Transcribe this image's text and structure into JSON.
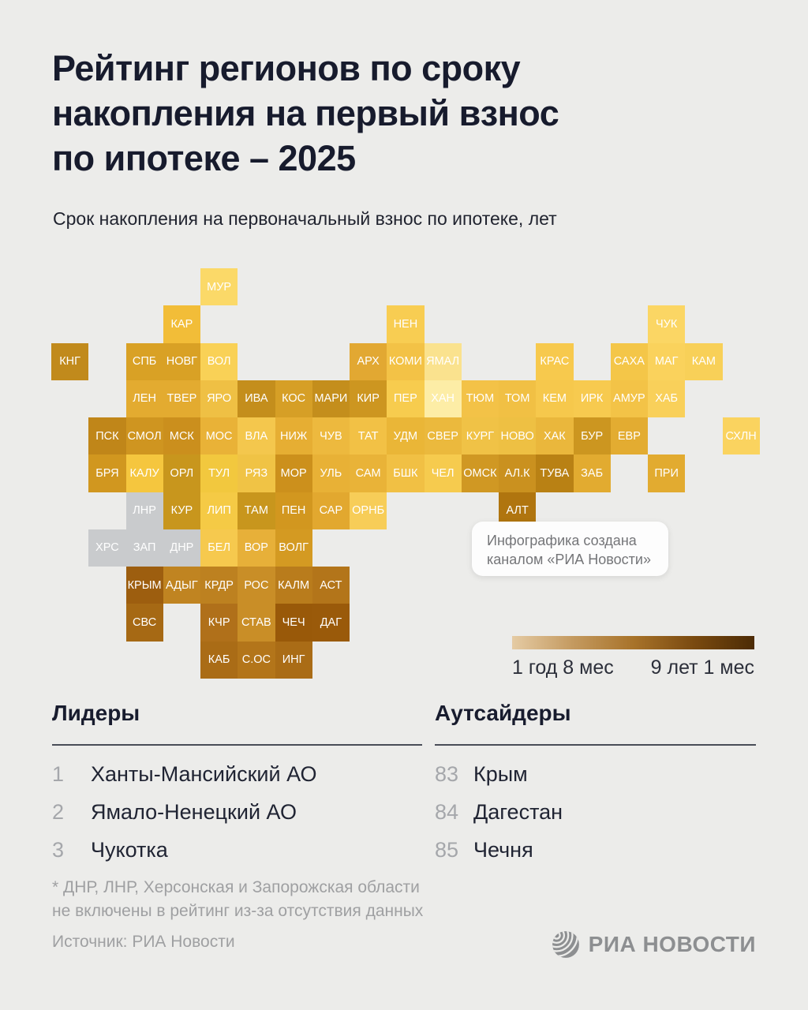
{
  "page": {
    "title_lines": [
      "Рейтинг регионов по сроку",
      "накопления на первый взнос",
      "по ипотеке – 2025"
    ],
    "subtitle": "Срок накопления на первоначальный взнос по ипотеке, лет",
    "background": "#ececea"
  },
  "annotation": {
    "line1": "Инфографика создана",
    "line2": "каналом «РИА Новости»"
  },
  "leaders": {
    "heading": "Лидеры",
    "items": [
      {
        "rank": "1",
        "name": "Ханты-Мансийский АО"
      },
      {
        "rank": "2",
        "name": "Ямало-Ненецкий АО"
      },
      {
        "rank": "3",
        "name": "Чукотка"
      }
    ]
  },
  "outsiders": {
    "heading": "Аутсайдеры",
    "items": [
      {
        "rank": "83",
        "name": "Крым"
      },
      {
        "rank": "84",
        "name": "Дагестан"
      },
      {
        "rank": "85",
        "name": "Чечня"
      }
    ]
  },
  "footnote_lines": [
    "* ДНР, ЛНР, Херсонская и Запорожская области",
    "не включены в рейтинг из-за отсутствия данных"
  ],
  "source": "Источник: РИА Новости",
  "logo_text": "РИА НОВОСТИ",
  "chart_data": {
    "type": "heatmap",
    "title": "Рейтинг регионов по сроку накопления на первый взнос по ипотеке – 2025",
    "subtitle": "Срок накопления на первоначальный взнос по ипотеке, лет",
    "unit": "лет",
    "legend": {
      "min_label": "1 год 8 мес",
      "max_label": "9 лет 1 мес",
      "gradient": [
        "#e5cba4",
        "#c49a60",
        "#a8732a",
        "#7a4a10",
        "#4c2b05"
      ]
    },
    "no_data_color": "#c9cbcd",
    "tiles": [
      {
        "label": "МУР",
        "col": 5,
        "row": 1,
        "color": "#fbd968"
      },
      {
        "label": "КАР",
        "col": 4,
        "row": 2,
        "color": "#f2bd38"
      },
      {
        "label": "НЕН",
        "col": 10,
        "row": 2,
        "color": "#f8cd52"
      },
      {
        "label": "ЧУК",
        "col": 17,
        "row": 2,
        "color": "#fbd664"
      },
      {
        "label": "КНГ",
        "col": 1,
        "row": 3,
        "color": "#c18a1c"
      },
      {
        "label": "СПБ",
        "col": 3,
        "row": 3,
        "color": "#d9a125"
      },
      {
        "label": "НОВГ",
        "col": 4,
        "row": 3,
        "color": "#d9a125"
      },
      {
        "label": "ВОЛ",
        "col": 5,
        "row": 3,
        "color": "#f9d156"
      },
      {
        "label": "АРХ",
        "col": 9,
        "row": 3,
        "color": "#e2a832"
      },
      {
        "label": "КОМИ",
        "col": 10,
        "row": 3,
        "color": "#f3c246"
      },
      {
        "label": "ЯМАЛ",
        "col": 11,
        "row": 3,
        "color": "#fae28e"
      },
      {
        "label": "КРАС",
        "col": 14,
        "row": 3,
        "color": "#f7c94d"
      },
      {
        "label": "САХА",
        "col": 16,
        "row": 3,
        "color": "#f4c648"
      },
      {
        "label": "МАГ",
        "col": 17,
        "row": 3,
        "color": "#fad25c"
      },
      {
        "label": "КАМ",
        "col": 18,
        "row": 3,
        "color": "#f8d058"
      },
      {
        "label": "ЛЕН",
        "col": 3,
        "row": 4,
        "color": "#e3ab30"
      },
      {
        "label": "ТВЕР",
        "col": 4,
        "row": 4,
        "color": "#e3ab30"
      },
      {
        "label": "ЯРО",
        "col": 5,
        "row": 4,
        "color": "#efc044"
      },
      {
        "label": "ИВА",
        "col": 6,
        "row": 4,
        "color": "#c48e1c"
      },
      {
        "label": "КОС",
        "col": 7,
        "row": 4,
        "color": "#d69f26"
      },
      {
        "label": "МАРИ",
        "col": 8,
        "row": 4,
        "color": "#c48e1c"
      },
      {
        "label": "КИР",
        "col": 9,
        "row": 4,
        "color": "#cd9620"
      },
      {
        "label": "ПЕР",
        "col": 10,
        "row": 4,
        "color": "#f7cc4e"
      },
      {
        "label": "ХАН",
        "col": 11,
        "row": 4,
        "color": "#fdeda6"
      },
      {
        "label": "ТЮМ",
        "col": 12,
        "row": 4,
        "color": "#f3c247"
      },
      {
        "label": "ТОМ",
        "col": 13,
        "row": 4,
        "color": "#f1c044"
      },
      {
        "label": "КЕМ",
        "col": 14,
        "row": 4,
        "color": "#f6c84c"
      },
      {
        "label": "ИРК",
        "col": 15,
        "row": 4,
        "color": "#f7ca4f"
      },
      {
        "label": "АМУР",
        "col": 16,
        "row": 4,
        "color": "#f3c347"
      },
      {
        "label": "ХАБ",
        "col": 17,
        "row": 4,
        "color": "#f9d05a"
      },
      {
        "label": "ПСК",
        "col": 2,
        "row": 5,
        "color": "#c08619"
      },
      {
        "label": "СМОЛ",
        "col": 3,
        "row": 5,
        "color": "#cf9520"
      },
      {
        "label": "МСК",
        "col": 4,
        "row": 5,
        "color": "#cb8f1d"
      },
      {
        "label": "МОС",
        "col": 5,
        "row": 5,
        "color": "#e9b237"
      },
      {
        "label": "ВЛА",
        "col": 6,
        "row": 5,
        "color": "#f4c74d"
      },
      {
        "label": "НИЖ",
        "col": 7,
        "row": 5,
        "color": "#e6ae33"
      },
      {
        "label": "ЧУВ",
        "col": 8,
        "row": 5,
        "color": "#edb93e"
      },
      {
        "label": "ТАТ",
        "col": 9,
        "row": 5,
        "color": "#f2c145"
      },
      {
        "label": "УДМ",
        "col": 10,
        "row": 5,
        "color": "#eab637"
      },
      {
        "label": "СВЕР",
        "col": 11,
        "row": 5,
        "color": "#ebb93d"
      },
      {
        "label": "КУРГ",
        "col": 12,
        "row": 5,
        "color": "#f0c246"
      },
      {
        "label": "НОВО",
        "col": 13,
        "row": 5,
        "color": "#eec043"
      },
      {
        "label": "ХАК",
        "col": 14,
        "row": 5,
        "color": "#eab73c"
      },
      {
        "label": "БУР",
        "col": 15,
        "row": 5,
        "color": "#cc9620"
      },
      {
        "label": "ЕВР",
        "col": 16,
        "row": 5,
        "color": "#e3ac31"
      },
      {
        "label": "СХЛН",
        "col": 19,
        "row": 5,
        "color": "#fad35f"
      },
      {
        "label": "БРЯ",
        "col": 2,
        "row": 6,
        "color": "#d1971f"
      },
      {
        "label": "КАЛУ",
        "col": 3,
        "row": 6,
        "color": "#f5c63e"
      },
      {
        "label": "ОРЛ",
        "col": 4,
        "row": 6,
        "color": "#c8961d"
      },
      {
        "label": "ТУЛ",
        "col": 5,
        "row": 6,
        "color": "#f2c83e"
      },
      {
        "label": "РЯЗ",
        "col": 6,
        "row": 6,
        "color": "#f0c345"
      },
      {
        "label": "МОР",
        "col": 7,
        "row": 6,
        "color": "#cc901c"
      },
      {
        "label": "УЛЬ",
        "col": 8,
        "row": 6,
        "color": "#e8b136"
      },
      {
        "label": "САМ",
        "col": 9,
        "row": 6,
        "color": "#e9b338"
      },
      {
        "label": "БШК",
        "col": 10,
        "row": 6,
        "color": "#f1c044"
      },
      {
        "label": "ЧЕЛ",
        "col": 11,
        "row": 6,
        "color": "#f6cb4e"
      },
      {
        "label": "ОМСК",
        "col": 12,
        "row": 6,
        "color": "#d09823"
      },
      {
        "label": "АЛ.К",
        "col": 13,
        "row": 6,
        "color": "#ca911f"
      },
      {
        "label": "ТУВА",
        "col": 14,
        "row": 6,
        "color": "#b98114"
      },
      {
        "label": "ЗАБ",
        "col": 15,
        "row": 6,
        "color": "#e2ab30"
      },
      {
        "label": "ПРИ",
        "col": 17,
        "row": 6,
        "color": "#e2ab30"
      },
      {
        "label": "ЛНР",
        "col": 3,
        "row": 7,
        "color": "#c9cbcd"
      },
      {
        "label": "КУР",
        "col": 4,
        "row": 7,
        "color": "#c8961d"
      },
      {
        "label": "ЛИП",
        "col": 5,
        "row": 7,
        "color": "#f5ca45"
      },
      {
        "label": "ТАМ",
        "col": 6,
        "row": 7,
        "color": "#c8961d"
      },
      {
        "label": "ПЕН",
        "col": 7,
        "row": 7,
        "color": "#d2971f"
      },
      {
        "label": "САР",
        "col": 8,
        "row": 7,
        "color": "#e2a82f"
      },
      {
        "label": "ОРНБ",
        "col": 9,
        "row": 7,
        "color": "#f7cd58"
      },
      {
        "label": "АЛТ",
        "col": 13,
        "row": 7,
        "color": "#b0750f"
      },
      {
        "label": "ХРС",
        "col": 2,
        "row": 8,
        "color": "#c9cbcd"
      },
      {
        "label": "ЗАП",
        "col": 3,
        "row": 8,
        "color": "#c9cbcd"
      },
      {
        "label": "ДНР",
        "col": 4,
        "row": 8,
        "color": "#c9cbcd"
      },
      {
        "label": "БЕЛ",
        "col": 5,
        "row": 8,
        "color": "#f6c94e"
      },
      {
        "label": "ВОР",
        "col": 6,
        "row": 8,
        "color": "#e7b039"
      },
      {
        "label": "ВОЛГ",
        "col": 7,
        "row": 8,
        "color": "#d49a22"
      },
      {
        "label": "КРЫМ",
        "col": 3,
        "row": 9,
        "color": "#9d5e0f"
      },
      {
        "label": "АДЫГ",
        "col": 4,
        "row": 9,
        "color": "#c08421"
      },
      {
        "label": "КРДР",
        "col": 5,
        "row": 9,
        "color": "#bd8120"
      },
      {
        "label": "РОС",
        "col": 6,
        "row": 9,
        "color": "#c98e27"
      },
      {
        "label": "КАЛМ",
        "col": 7,
        "row": 9,
        "color": "#b97c1c"
      },
      {
        "label": "АСТ",
        "col": 8,
        "row": 9,
        "color": "#b3751a"
      },
      {
        "label": "СВС",
        "col": 3,
        "row": 10,
        "color": "#a66914"
      },
      {
        "label": "КЧР",
        "col": 5,
        "row": 10,
        "color": "#b0701a"
      },
      {
        "label": "СТАВ",
        "col": 6,
        "row": 10,
        "color": "#c98e27"
      },
      {
        "label": "ЧЕЧ",
        "col": 7,
        "row": 10,
        "color": "#995909"
      },
      {
        "label": "ДАГ",
        "col": 8,
        "row": 10,
        "color": "#9a5a0a"
      },
      {
        "label": "КАБ",
        "col": 5,
        "row": 11,
        "color": "#aa6c16"
      },
      {
        "label": "С.ОС",
        "col": 6,
        "row": 11,
        "color": "#b3751a"
      },
      {
        "label": "ИНГ",
        "col": 7,
        "row": 11,
        "color": "#aa6c16"
      }
    ]
  }
}
